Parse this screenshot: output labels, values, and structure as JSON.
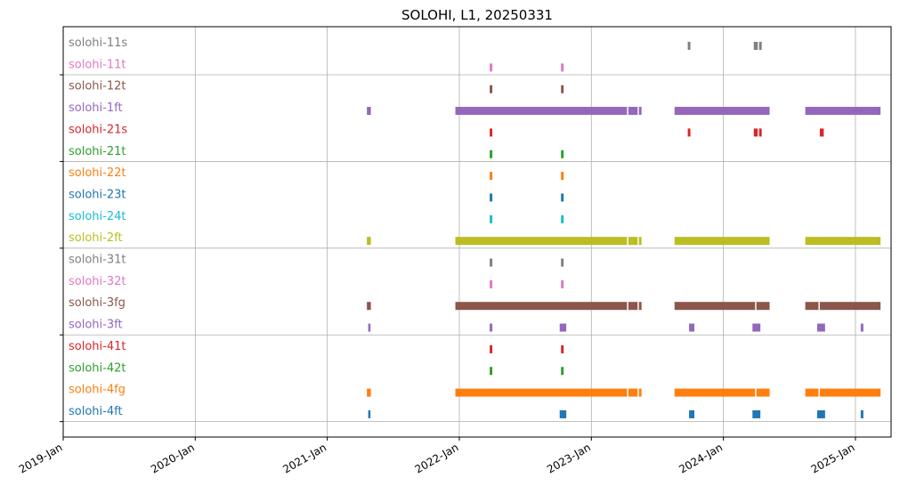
{
  "chart_data": {
    "type": "timeline",
    "title": "SOLOHI, L1, 20250331",
    "xlabel": "",
    "ylabel": "",
    "grid": true,
    "xlim": [
      2019.0,
      2025.27
    ],
    "x_ticks": [
      {
        "value": 2019.0,
        "label": "2019-Jan"
      },
      {
        "value": 2020.0,
        "label": "2020-Jan"
      },
      {
        "value": 2021.0,
        "label": "2021-Jan"
      },
      {
        "value": 2022.0,
        "label": "2022-Jan"
      },
      {
        "value": 2023.0,
        "label": "2023-Jan"
      },
      {
        "value": 2024.0,
        "label": "2024-Jan"
      },
      {
        "value": 2025.0,
        "label": "2025-Jan"
      }
    ],
    "y_gridlines_after_row": [
      1,
      5,
      9,
      13,
      17
    ],
    "series": [
      {
        "name": "solohi-11s",
        "color": "#7f7f7f",
        "intervals": [
          [
            2023.73,
            2023.75
          ],
          [
            2024.23,
            2024.26
          ],
          [
            2024.27,
            2024.29
          ]
        ]
      },
      {
        "name": "solohi-11t",
        "color": "#e377c2",
        "intervals": [
          [
            2022.23,
            2022.25
          ],
          [
            2022.77,
            2022.79
          ]
        ]
      },
      {
        "name": "solohi-12t",
        "color": "#8c564b",
        "intervals": [
          [
            2022.23,
            2022.25
          ],
          [
            2022.77,
            2022.79
          ]
        ]
      },
      {
        "name": "solohi-1ft",
        "color": "#9467bd",
        "intervals": [
          [
            2021.3,
            2021.33
          ],
          [
            2021.97,
            2023.27
          ],
          [
            2023.28,
            2023.35
          ],
          [
            2023.36,
            2023.38
          ],
          [
            2023.63,
            2024.35
          ],
          [
            2024.62,
            2025.19
          ]
        ]
      },
      {
        "name": "solohi-21s",
        "color": "#d62728",
        "intervals": [
          [
            2022.23,
            2022.25
          ],
          [
            2023.73,
            2023.75
          ],
          [
            2024.23,
            2024.26
          ],
          [
            2024.27,
            2024.29
          ],
          [
            2024.73,
            2024.76
          ]
        ]
      },
      {
        "name": "solohi-21t",
        "color": "#2ca02c",
        "intervals": [
          [
            2022.23,
            2022.25
          ],
          [
            2022.77,
            2022.79
          ]
        ]
      },
      {
        "name": "solohi-22t",
        "color": "#ff7f0e",
        "intervals": [
          [
            2022.23,
            2022.25
          ],
          [
            2022.77,
            2022.79
          ]
        ]
      },
      {
        "name": "solohi-23t",
        "color": "#1f77b4",
        "intervals": [
          [
            2022.23,
            2022.25
          ],
          [
            2022.77,
            2022.79
          ]
        ]
      },
      {
        "name": "solohi-24t",
        "color": "#17becf",
        "intervals": [
          [
            2022.23,
            2022.25
          ],
          [
            2022.77,
            2022.79
          ]
        ]
      },
      {
        "name": "solohi-2ft",
        "color": "#bcbd22",
        "intervals": [
          [
            2021.3,
            2021.33
          ],
          [
            2021.97,
            2023.27
          ],
          [
            2023.28,
            2023.35
          ],
          [
            2023.36,
            2023.38
          ],
          [
            2023.63,
            2024.35
          ],
          [
            2024.62,
            2025.19
          ]
        ]
      },
      {
        "name": "solohi-31t",
        "color": "#7f7f7f",
        "intervals": [
          [
            2022.23,
            2022.25
          ],
          [
            2022.77,
            2022.79
          ]
        ]
      },
      {
        "name": "solohi-32t",
        "color": "#e377c2",
        "intervals": [
          [
            2022.23,
            2022.25
          ],
          [
            2022.77,
            2022.79
          ]
        ]
      },
      {
        "name": "solohi-3fg",
        "color": "#8c564b",
        "intervals": [
          [
            2021.3,
            2021.33
          ],
          [
            2021.97,
            2023.27
          ],
          [
            2023.28,
            2023.35
          ],
          [
            2023.36,
            2023.38
          ],
          [
            2023.63,
            2024.24
          ],
          [
            2024.25,
            2024.35
          ],
          [
            2024.62,
            2024.72
          ],
          [
            2024.73,
            2025.19
          ]
        ]
      },
      {
        "name": "solohi-3ft",
        "color": "#9467bd",
        "intervals": [
          [
            2021.31,
            2021.32
          ],
          [
            2022.23,
            2022.25
          ],
          [
            2022.76,
            2022.81
          ],
          [
            2023.74,
            2023.78
          ],
          [
            2024.22,
            2024.28
          ],
          [
            2024.71,
            2024.77
          ],
          [
            2025.04,
            2025.06
          ]
        ]
      },
      {
        "name": "solohi-41t",
        "color": "#d62728",
        "intervals": [
          [
            2022.23,
            2022.25
          ],
          [
            2022.77,
            2022.79
          ]
        ]
      },
      {
        "name": "solohi-42t",
        "color": "#2ca02c",
        "intervals": [
          [
            2022.23,
            2022.25
          ],
          [
            2022.77,
            2022.79
          ]
        ]
      },
      {
        "name": "solohi-4fg",
        "color": "#ff7f0e",
        "intervals": [
          [
            2021.3,
            2021.33
          ],
          [
            2021.97,
            2023.27
          ],
          [
            2023.28,
            2023.35
          ],
          [
            2023.36,
            2023.38
          ],
          [
            2023.63,
            2024.24
          ],
          [
            2024.25,
            2024.35
          ],
          [
            2024.62,
            2024.72
          ],
          [
            2024.73,
            2025.19
          ]
        ]
      },
      {
        "name": "solohi-4ft",
        "color": "#1f77b4",
        "intervals": [
          [
            2021.31,
            2021.32
          ],
          [
            2022.76,
            2022.81
          ],
          [
            2023.74,
            2023.78
          ],
          [
            2024.22,
            2024.28
          ],
          [
            2024.71,
            2024.77
          ],
          [
            2025.04,
            2025.06
          ]
        ]
      }
    ]
  }
}
